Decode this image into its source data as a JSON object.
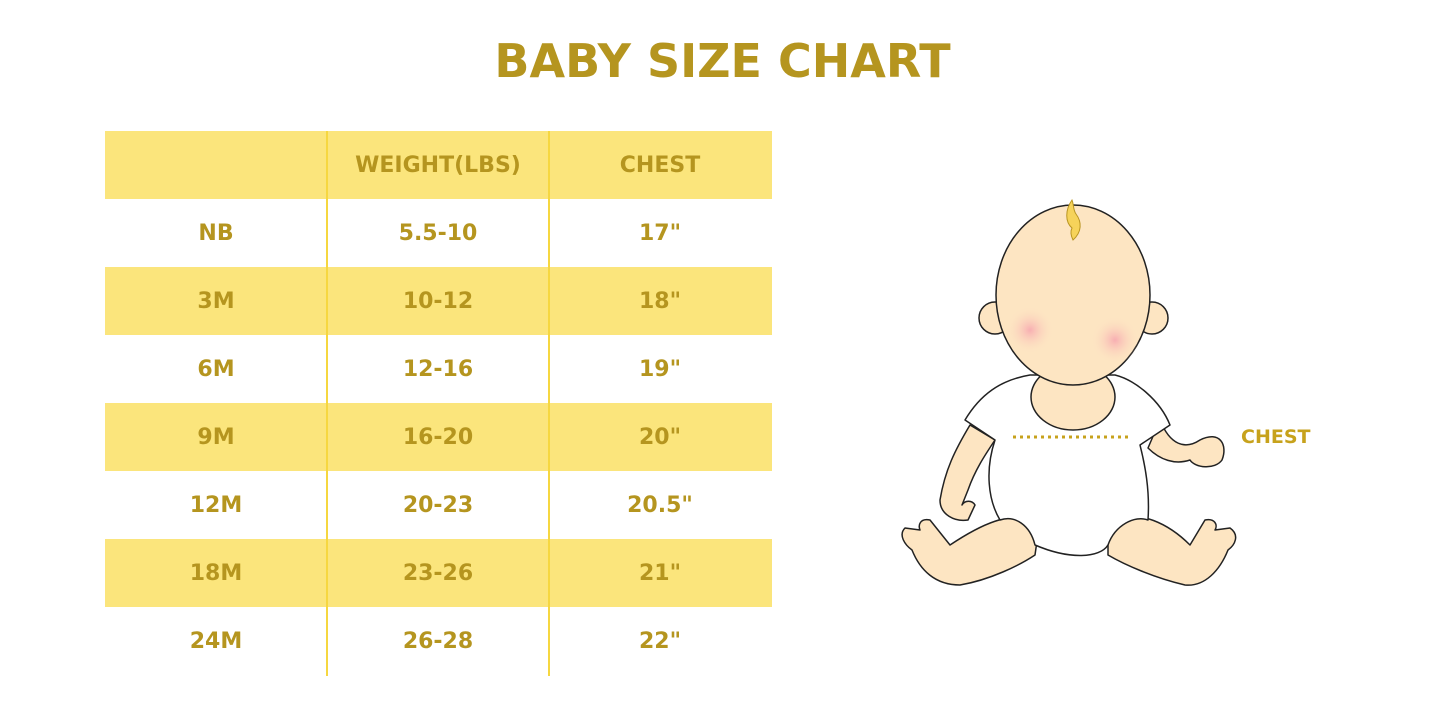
{
  "title": "BABY SIZE CHART",
  "table": {
    "headers": [
      "",
      "WEIGHT(LBS)",
      "CHEST"
    ],
    "rows": [
      [
        "NB",
        "5.5-10",
        "17\""
      ],
      [
        "3M",
        "10-12",
        "18\""
      ],
      [
        "6M",
        "12-16",
        "19\""
      ],
      [
        "9M",
        "16-20",
        "20\""
      ],
      [
        "12M",
        "20-23",
        "20.5\""
      ],
      [
        "18M",
        "23-26",
        "21\""
      ],
      [
        "24M",
        "26-28",
        "22\""
      ]
    ]
  },
  "illustration": {
    "label": "CHEST"
  },
  "colors": {
    "text": "#b5951f",
    "band": "#fbe57c",
    "divider": "#f6d740"
  }
}
